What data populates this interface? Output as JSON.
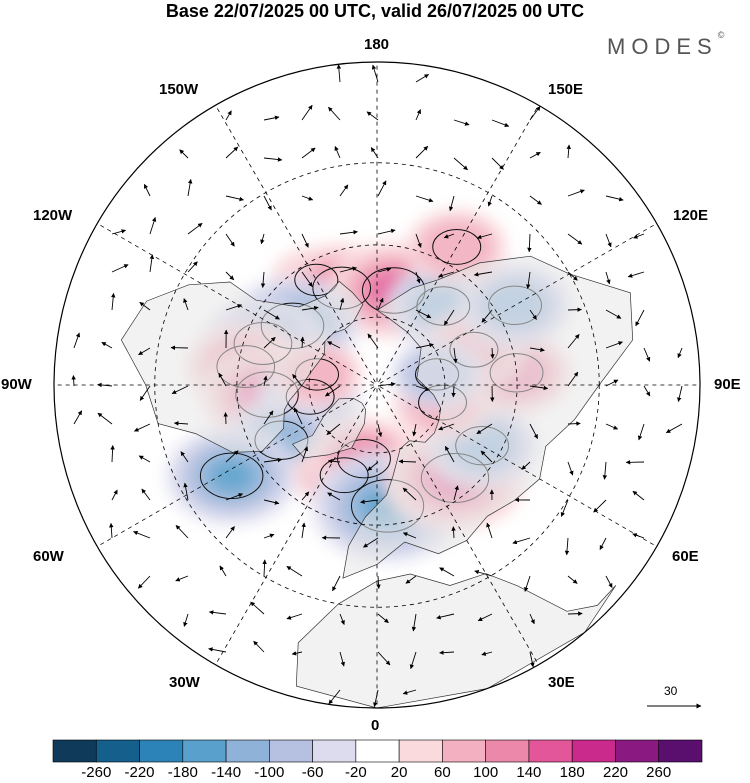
{
  "header": {
    "title": "Base 22/07/2025 00 UTC, valid 26/07/2025 00 UTC",
    "brand": "MODES",
    "brand_mark": "©"
  },
  "map": {
    "projection": "north-polar-stereographic",
    "longitude_labels": {
      "top": "180",
      "top_left": "150W",
      "top_right": "150E",
      "upper_left": "120W",
      "upper_right": "120E",
      "left": "90W",
      "right": "90E",
      "lower_left": "60W",
      "lower_right": "60E",
      "bottom_left": "30W",
      "bottom_right": "30E",
      "bottom": "0"
    },
    "reference_vector_label": "30",
    "anomalies": [
      {
        "lon": -150,
        "lat": 55,
        "value": 60
      },
      {
        "lon": -160,
        "lat": 60,
        "value": 120
      },
      {
        "lon": 170,
        "lat": 62,
        "value": 140
      },
      {
        "lon": 140,
        "lat": 60,
        "value": -100
      },
      {
        "lon": -125,
        "lat": 60,
        "value": -140
      },
      {
        "lon": -110,
        "lat": 55,
        "value": -120
      },
      {
        "lon": -98,
        "lat": 52,
        "value": 120
      },
      {
        "lon": -85,
        "lat": 58,
        "value": 140
      },
      {
        "lon": -80,
        "lat": 70,
        "value": -80
      },
      {
        "lon": -60,
        "lat": 58,
        "value": -100
      },
      {
        "lon": -58,
        "lat": 42,
        "value": -140
      },
      {
        "lon": -20,
        "lat": 62,
        "value": 80
      },
      {
        "lon": -10,
        "lat": 68,
        "value": 100
      },
      {
        "lon": 5,
        "lat": 55,
        "value": -180
      },
      {
        "lon": 40,
        "lat": 55,
        "value": 160
      },
      {
        "lon": 60,
        "lat": 55,
        "value": -100
      },
      {
        "lon": 75,
        "lat": 70,
        "value": 80
      },
      {
        "lon": 95,
        "lat": 50,
        "value": 100
      },
      {
        "lon": 110,
        "lat": 60,
        "value": 80
      },
      {
        "lon": 120,
        "lat": 45,
        "value": -100
      },
      {
        "lon": 100,
        "lat": 72,
        "value": -60
      },
      {
        "lon": -100,
        "lat": 72,
        "value": 60
      },
      {
        "lon": 150,
        "lat": 45,
        "value": 80
      }
    ]
  },
  "colorbar": {
    "tick_labels": [
      "-260",
      "-220",
      "-180",
      "-140",
      "-100",
      "-60",
      "-20",
      "20",
      "60",
      "100",
      "140",
      "180",
      "220",
      "260"
    ],
    "colors": [
      "#0f3a5a",
      "#155f8c",
      "#2c83b7",
      "#5aa0cc",
      "#8fb3d8",
      "#b6c0e0",
      "#dcdcee",
      "#ffffff",
      "#fadadd",
      "#f2b0c0",
      "#ec88aa",
      "#e3579a",
      "#c92a8c",
      "#8a1a82",
      "#5a0f6e"
    ]
  }
}
